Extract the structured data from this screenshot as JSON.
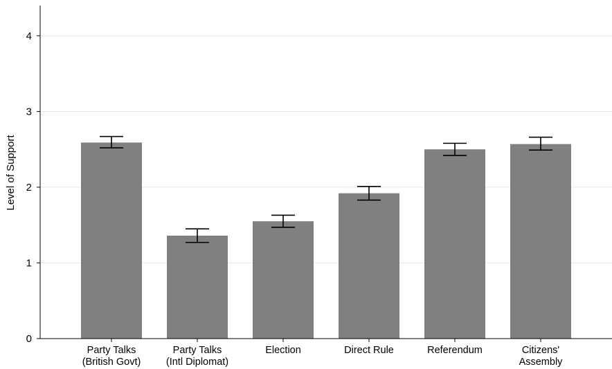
{
  "chart_data": {
    "type": "bar",
    "title": "",
    "xlabel": "",
    "ylabel": "Level of Support",
    "ylim": [
      0,
      4.4
    ],
    "yticks": [
      "0",
      "1",
      "2",
      "3",
      "4"
    ],
    "grid": true,
    "categories": [
      [
        "Party Talks",
        "(British Govt)"
      ],
      [
        "Party Talks",
        "(Intl Diplomat)"
      ],
      [
        "Election"
      ],
      [
        "Direct Rule"
      ],
      [
        "Referendum"
      ],
      [
        "Citizens'",
        "Assembly"
      ]
    ],
    "values": [
      2.59,
      1.36,
      1.55,
      1.92,
      2.5,
      2.57
    ],
    "error_low": [
      2.52,
      1.27,
      1.47,
      1.83,
      2.42,
      2.49
    ],
    "error_high": [
      2.67,
      1.45,
      1.63,
      2.01,
      2.58,
      2.66
    ],
    "colors": {
      "bar": "#808080",
      "grid": "#e6e6e6",
      "axis": "#000000"
    }
  }
}
